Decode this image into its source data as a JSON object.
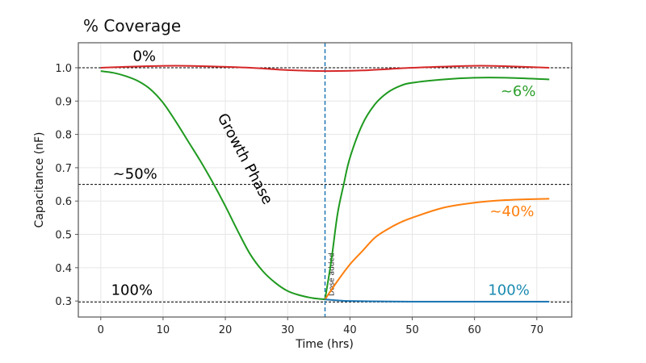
{
  "chart_data": {
    "type": "line",
    "title": "% Coverage",
    "xlabel": "Time (hrs)",
    "ylabel": "Capacitance (nF)",
    "xlim": [
      -3.6,
      75.6
    ],
    "ylim": [
      0.252,
      1.075
    ],
    "xticks": [
      0,
      10,
      20,
      30,
      40,
      50,
      60,
      70
    ],
    "yticks": [
      0.3,
      0.4,
      0.5,
      0.6,
      0.7,
      0.8,
      0.9,
      1.0
    ],
    "ytick_labels": [
      "0.3",
      "0.4",
      "0.5",
      "0.6",
      "0.7",
      "0.8",
      "0.9",
      "1.0"
    ],
    "grid": true,
    "hlines": [
      {
        "y": 1.0,
        "style": "dotted",
        "color": "#000000"
      },
      {
        "y": 0.65,
        "style": "dotted",
        "color": "#000000"
      },
      {
        "y": 0.297,
        "style": "dotted",
        "color": "#000000"
      }
    ],
    "vline": {
      "x": 36,
      "style": "dashed",
      "color": "#1f77b4",
      "label": "Dose added"
    },
    "series": [
      {
        "color": "#d62728",
        "x": [
          0,
          6,
          12,
          18,
          24,
          30,
          36,
          42,
          50,
          56,
          61,
          66,
          72
        ],
        "y": [
          1.0,
          1.004,
          1.006,
          1.004,
          1.0,
          0.993,
          0.99,
          0.992,
          1.0,
          1.004,
          1.006,
          1.004,
          1.0
        ]
      },
      {
        "color": "#1f9a1f",
        "x": [
          0,
          2,
          4,
          6,
          8,
          10,
          12,
          14,
          16,
          18,
          20,
          22,
          24,
          26,
          28,
          30,
          32,
          34,
          36
        ],
        "y": [
          0.99,
          0.985,
          0.975,
          0.96,
          0.935,
          0.895,
          0.84,
          0.78,
          0.72,
          0.655,
          0.585,
          0.51,
          0.44,
          0.39,
          0.355,
          0.33,
          0.317,
          0.309,
          0.305
        ]
      },
      {
        "color": "#1f9a1f",
        "x": [
          36,
          37,
          38,
          39,
          40,
          42,
          44,
          46,
          48,
          50,
          55,
          60,
          65,
          72
        ],
        "y": [
          0.305,
          0.42,
          0.56,
          0.65,
          0.73,
          0.83,
          0.89,
          0.925,
          0.945,
          0.955,
          0.965,
          0.97,
          0.97,
          0.965
        ]
      },
      {
        "color": "#ff7f0e",
        "x": [
          36,
          38,
          40,
          42,
          44,
          46,
          48,
          50,
          55,
          60,
          65,
          72
        ],
        "y": [
          0.305,
          0.36,
          0.41,
          0.45,
          0.49,
          0.515,
          0.535,
          0.55,
          0.58,
          0.595,
          0.603,
          0.607
        ]
      },
      {
        "color": "#1f77b4",
        "x": [
          36,
          38,
          40,
          45,
          50,
          60,
          72
        ],
        "y": [
          0.305,
          0.302,
          0.3,
          0.299,
          0.298,
          0.298,
          0.298
        ]
      }
    ],
    "annotations": [
      {
        "text": "0%",
        "x": 7,
        "y": 1.02,
        "color": "#000000"
      },
      {
        "text": "~50%",
        "x": 5.5,
        "y": 0.667,
        "color": "#000000"
      },
      {
        "text": "100%",
        "x": 5,
        "y": 0.318,
        "color": "#000000"
      },
      {
        "text": "Growth Phase",
        "x": 22.5,
        "y": 0.72,
        "color": "#000000",
        "rotation": 62
      },
      {
        "text": "~6%",
        "x": 67,
        "y": 0.915,
        "color": "#2ca02c"
      },
      {
        "text": "~40%",
        "x": 66,
        "y": 0.555,
        "color": "#ff7f0e"
      },
      {
        "text": "100%",
        "x": 65.5,
        "y": 0.318,
        "color": "#1a8ab0"
      }
    ]
  }
}
